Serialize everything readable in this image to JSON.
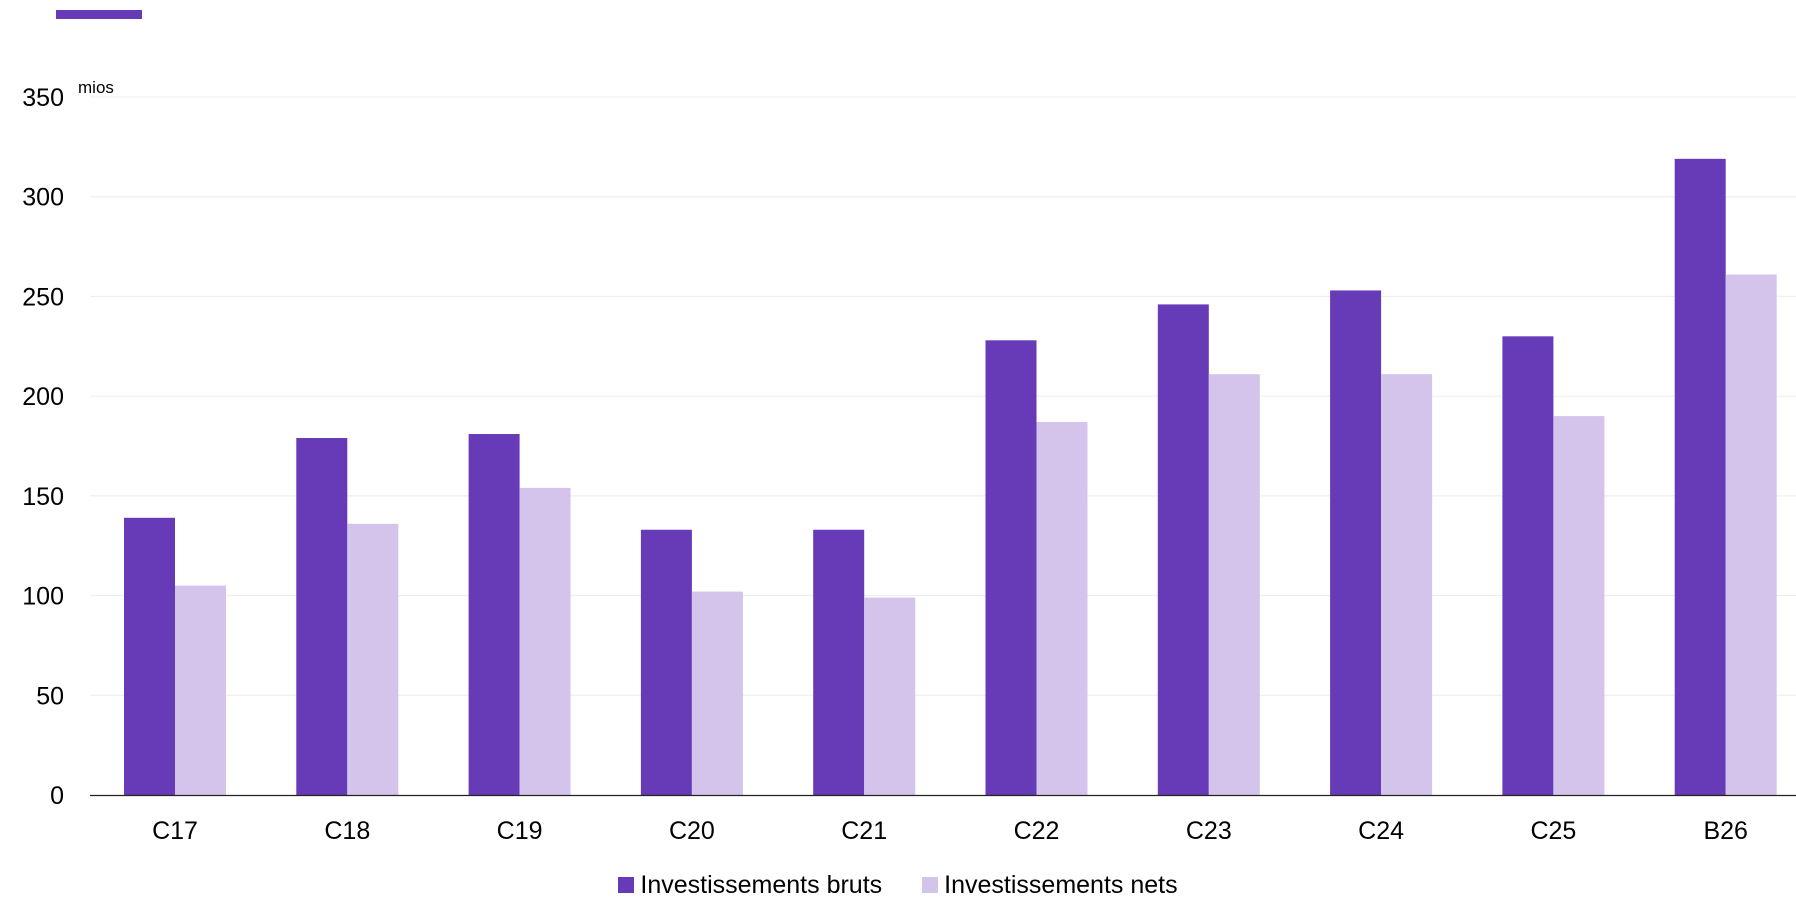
{
  "chart_data": {
    "type": "bar",
    "unit_label": "mios",
    "categories": [
      "C17",
      "C18",
      "C19",
      "C20",
      "C21",
      "C22",
      "C23",
      "C24",
      "C25",
      "B26"
    ],
    "series": [
      {
        "name": "Investissements bruts",
        "color": "#673ab7",
        "values": [
          139,
          179,
          181,
          133,
          133,
          228,
          246,
          253,
          230,
          319
        ]
      },
      {
        "name": "Investissements nets",
        "color": "#d4c4eb",
        "values": [
          105,
          136,
          154,
          102,
          99,
          187,
          211,
          211,
          190,
          261
        ]
      }
    ],
    "ylim": [
      0,
      350
    ],
    "yticks": [
      0,
      50,
      100,
      150,
      200,
      250,
      300,
      350
    ],
    "grid": true,
    "legend_position": "bottom"
  },
  "style": {
    "accent_color": "#673ab7"
  }
}
